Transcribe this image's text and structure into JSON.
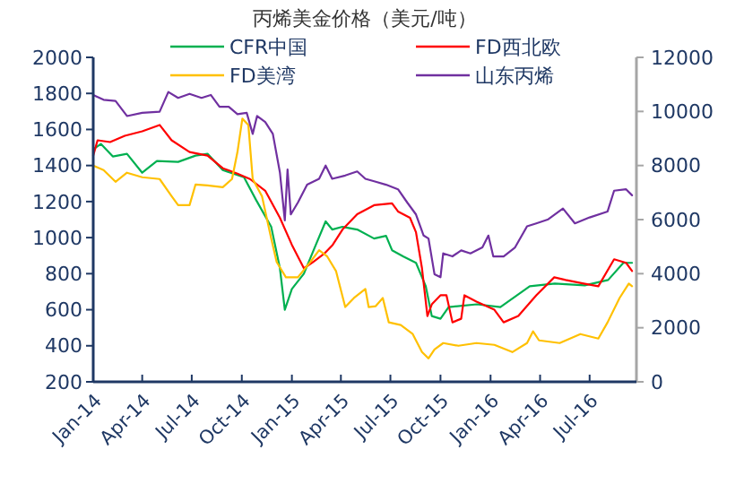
{
  "chart_data": {
    "type": "line",
    "title": "丙烯美金价格（美元/吨）",
    "legend": "top",
    "grid": false,
    "marker": "none",
    "line_style": "solid",
    "xlim": [
      "2014-01-01",
      "2016-09-25"
    ],
    "xticks": [
      {
        "value": "2014-01-01",
        "label": "Jan-14"
      },
      {
        "value": "2014-04-01",
        "label": "Apr-14"
      },
      {
        "value": "2014-07-01",
        "label": "Jul-14"
      },
      {
        "value": "2014-10-01",
        "label": "Oct-14"
      },
      {
        "value": "2015-01-01",
        "label": "Jan-15"
      },
      {
        "value": "2015-04-01",
        "label": "Apr-15"
      },
      {
        "value": "2015-07-01",
        "label": "Jul-15"
      },
      {
        "value": "2015-10-01",
        "label": "Oct-15"
      },
      {
        "value": "2016-01-01",
        "label": "Jan-16"
      },
      {
        "value": "2016-04-01",
        "label": "Apr-16"
      },
      {
        "value": "2016-07-01",
        "label": "Jul-16"
      }
    ],
    "ylim": [
      200,
      2000
    ],
    "yticks": [
      200,
      400,
      600,
      800,
      1000,
      1200,
      1400,
      1600,
      1800,
      2000
    ],
    "y2lim": [
      0,
      12000
    ],
    "y2ticks": [
      0,
      2000,
      4000,
      6000,
      8000,
      10000,
      12000
    ],
    "series": [
      {
        "name": "CFR中国",
        "color": "#00b050",
        "x": [
          "2014-01-01",
          "2014-01-15",
          "2014-02-06",
          "2014-03-04",
          "2014-04-01",
          "2014-04-28",
          "2014-06-06",
          "2014-07-08",
          "2014-07-30",
          "2014-08-27",
          "2014-10-05",
          "2014-10-27",
          "2014-11-24",
          "2014-12-10",
          "2014-12-19",
          "2015-01-01",
          "2015-01-23",
          "2015-02-14",
          "2015-03-04",
          "2015-03-16",
          "2015-04-04",
          "2015-05-01",
          "2015-06-01",
          "2015-06-23",
          "2015-07-04",
          "2015-07-25",
          "2015-08-17",
          "2015-09-04",
          "2015-09-15",
          "2015-10-01",
          "2015-10-16",
          "2015-12-07",
          "2016-01-19",
          "2016-03-13",
          "2016-04-28",
          "2016-06-22",
          "2016-08-04",
          "2016-09-01",
          "2016-09-17"
        ],
        "values": [
          1490,
          1520,
          1450,
          1465,
          1360,
          1425,
          1420,
          1455,
          1465,
          1375,
          1335,
          1210,
          1060,
          830,
          600,
          715,
          800,
          960,
          1090,
          1045,
          1060,
          1045,
          995,
          1010,
          930,
          895,
          860,
          730,
          565,
          550,
          615,
          630,
          615,
          730,
          745,
          735,
          765,
          860,
          860
        ]
      },
      {
        "name": "FD西北欧",
        "color": "#ff0000",
        "x": [
          "2014-01-01",
          "2014-01-09",
          "2014-02-01",
          "2014-02-28",
          "2014-04-01",
          "2014-05-03",
          "2014-05-25",
          "2014-06-27",
          "2014-07-30",
          "2014-08-27",
          "2014-09-23",
          "2014-10-16",
          "2014-11-13",
          "2014-12-10",
          "2015-01-01",
          "2015-01-23",
          "2015-02-09",
          "2015-03-01",
          "2015-03-17",
          "2015-04-04",
          "2015-05-01",
          "2015-06-01",
          "2015-07-04",
          "2015-07-15",
          "2015-08-06",
          "2015-08-17",
          "2015-08-28",
          "2015-09-07",
          "2015-09-15",
          "2015-10-01",
          "2015-10-12",
          "2015-10-23",
          "2015-11-08",
          "2015-11-14",
          "2015-12-06",
          "2016-01-08",
          "2016-01-25",
          "2016-02-21",
          "2016-03-25",
          "2016-04-27",
          "2016-05-18",
          "2016-06-20",
          "2016-07-17",
          "2016-08-15",
          "2016-09-06",
          "2016-09-17"
        ],
        "values": [
          1455,
          1540,
          1530,
          1565,
          1590,
          1625,
          1540,
          1475,
          1455,
          1385,
          1355,
          1325,
          1260,
          1110,
          960,
          830,
          865,
          910,
          960,
          1045,
          1130,
          1180,
          1190,
          1145,
          1110,
          1030,
          830,
          565,
          630,
          680,
          680,
          530,
          550,
          680,
          645,
          600,
          530,
          565,
          680,
          780,
          765,
          745,
          730,
          880,
          860,
          815
        ]
      },
      {
        "name": "FD美湾",
        "color": "#ffc000",
        "x": [
          "2014-01-01",
          "2014-01-20",
          "2014-02-11",
          "2014-03-04",
          "2014-04-01",
          "2014-05-03",
          "2014-05-25",
          "2014-06-06",
          "2014-06-27",
          "2014-07-08",
          "2014-07-30",
          "2014-08-27",
          "2014-09-13",
          "2014-09-23",
          "2014-10-02",
          "2014-10-13",
          "2014-10-21",
          "2014-11-07",
          "2014-11-24",
          "2014-12-04",
          "2014-12-21",
          "2015-01-12",
          "2015-02-04",
          "2015-02-20",
          "2015-03-07",
          "2015-03-23",
          "2015-04-09",
          "2015-04-25",
          "2015-05-16",
          "2015-05-22",
          "2015-06-04",
          "2015-06-17",
          "2015-06-28",
          "2015-07-20",
          "2015-08-11",
          "2015-08-28",
          "2015-09-09",
          "2015-09-20",
          "2015-10-06",
          "2015-11-03",
          "2015-12-06",
          "2016-01-08",
          "2016-02-10",
          "2016-03-08",
          "2016-03-19",
          "2016-03-30",
          "2016-05-07",
          "2016-06-14",
          "2016-07-17",
          "2016-08-03",
          "2016-08-25",
          "2016-09-11",
          "2016-09-17"
        ],
        "values": [
          1400,
          1375,
          1310,
          1360,
          1335,
          1325,
          1230,
          1180,
          1180,
          1295,
          1290,
          1280,
          1325,
          1475,
          1660,
          1625,
          1325,
          1230,
          995,
          865,
          780,
          780,
          865,
          930,
          895,
          815,
          615,
          665,
          715,
          615,
          620,
          665,
          530,
          515,
          465,
          365,
          330,
          380,
          415,
          400,
          415,
          405,
          365,
          415,
          480,
          430,
          415,
          465,
          440,
          530,
          665,
          745,
          730
        ]
      },
      {
        "name": "山东丙烯",
        "color": "#7030a0",
        "axis": "y2",
        "x": [
          "2014-01-01",
          "2014-01-20",
          "2014-02-11",
          "2014-03-04",
          "2014-04-01",
          "2014-05-03",
          "2014-05-19",
          "2014-06-06",
          "2014-06-27",
          "2014-07-19",
          "2014-08-05",
          "2014-08-21",
          "2014-09-07",
          "2014-09-23",
          "2014-10-10",
          "2014-10-21",
          "2014-10-29",
          "2014-11-13",
          "2014-11-27",
          "2014-12-10",
          "2014-12-19",
          "2014-12-24",
          "2014-12-30",
          "2015-01-12",
          "2015-01-29",
          "2015-02-20",
          "2015-03-04",
          "2015-03-16",
          "2015-04-09",
          "2015-05-01",
          "2015-05-16",
          "2015-06-04",
          "2015-06-23",
          "2015-07-15",
          "2015-08-01",
          "2015-08-17",
          "2015-08-31",
          "2015-09-09",
          "2015-09-20",
          "2015-10-01",
          "2015-10-06",
          "2015-10-23",
          "2015-11-08",
          "2015-11-25",
          "2015-12-17",
          "2015-12-28",
          "2016-01-06",
          "2016-01-25",
          "2016-02-15",
          "2016-03-08",
          "2016-03-25",
          "2016-04-16",
          "2016-05-13",
          "2016-06-04",
          "2016-07-01",
          "2016-08-03",
          "2016-08-15",
          "2016-09-06",
          "2016-09-17"
        ],
        "values": [
          10610,
          10430,
          10390,
          9830,
          9950,
          9990,
          10720,
          10500,
          10650,
          10500,
          10610,
          10170,
          10170,
          9900,
          9950,
          9170,
          9830,
          9610,
          9170,
          7740,
          5970,
          7850,
          6190,
          6630,
          7290,
          7510,
          8000,
          7510,
          7630,
          7780,
          7510,
          7400,
          7290,
          7120,
          6630,
          6190,
          5410,
          5300,
          3980,
          3870,
          4750,
          4640,
          4860,
          4750,
          4970,
          5410,
          4640,
          4640,
          4970,
          5750,
          5860,
          6010,
          6410,
          5860,
          6080,
          6300,
          7070,
          7120,
          6900
        ]
      }
    ]
  }
}
